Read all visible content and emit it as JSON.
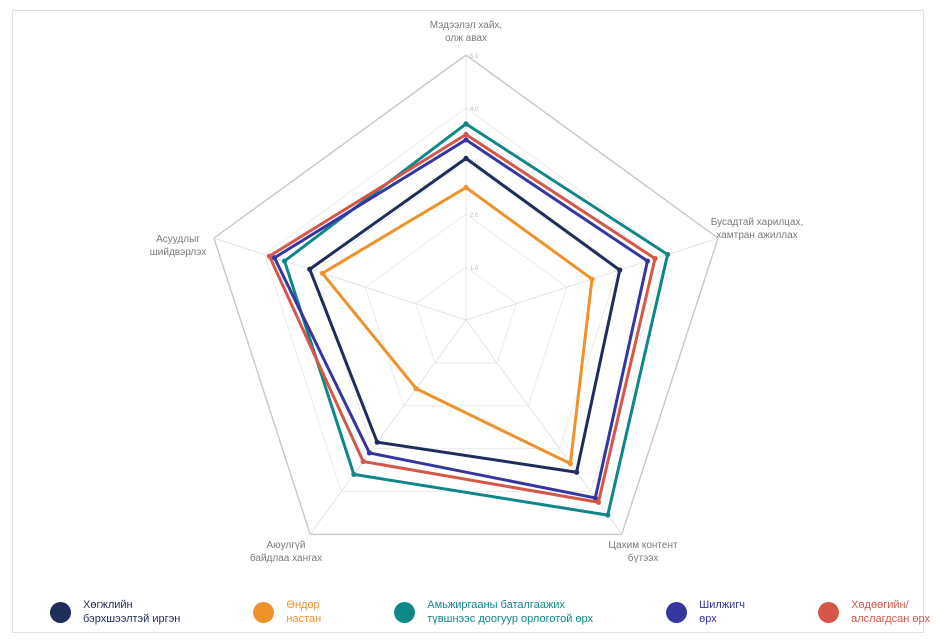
{
  "chart_data": {
    "type": "radar",
    "axes": [
      "Мэдээлэл хайх,\nолж авах",
      "Бусадтай харилцах,\nхамтран ажиллах",
      "Цахим контент\nбүтээх",
      "Аюулгүй\nбайдлаа хангах",
      "Асуудлыг\nшийдвэрлэх"
    ],
    "ticks": [
      "0",
      "1.0",
      "2.0",
      "3.0",
      "4.0",
      "5.0"
    ],
    "rmax": 5,
    "series": [
      {
        "name": "Хөгжлийн\nбэрхшээлтэй иргэн",
        "color": "#1f2d5a",
        "values": [
          3.05,
          3.05,
          3.55,
          2.85,
          3.1
        ]
      },
      {
        "name": " Өндөр\nнастан",
        "color": "#f0922c",
        "values": [
          2.5,
          2.5,
          3.35,
          1.6,
          2.85
        ]
      },
      {
        "name": "Амьжиргааны баталгаажих\nтүвшнээс доогуур орлоготой өрх",
        "color": "#108787",
        "values": [
          3.7,
          4.0,
          4.55,
          3.6,
          3.6
        ]
      },
      {
        "name": "Шилжигч\nөрх",
        "color": "#3536a0",
        "values": [
          3.4,
          3.6,
          4.15,
          3.1,
          3.8
        ]
      },
      {
        "name": "Хөдөөгийн/\nалслагдсан өрх",
        "color": "#d4574a",
        "values": [
          3.5,
          3.75,
          4.25,
          3.3,
          3.9
        ]
      }
    ]
  }
}
